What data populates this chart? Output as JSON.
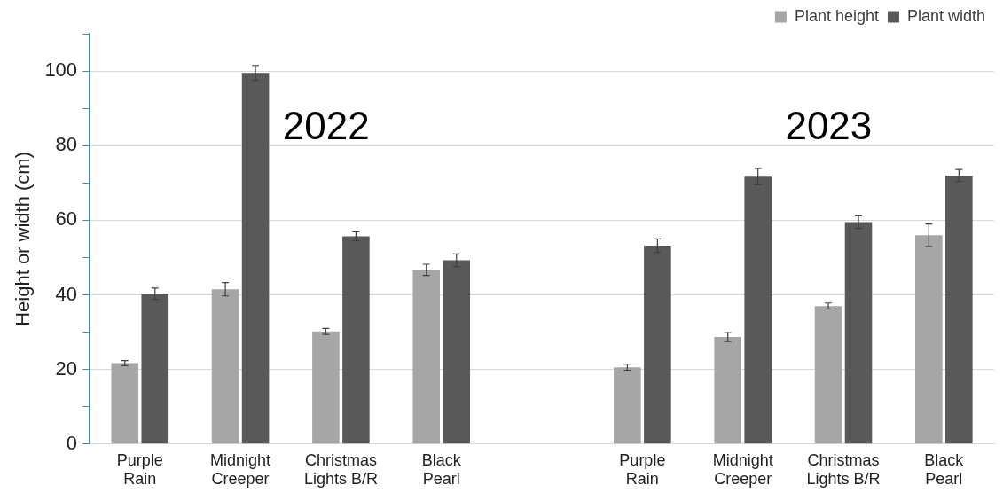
{
  "chart_data": {
    "type": "bar",
    "ylabel": "Height or width (cm)",
    "categories": [
      "Purple Rain",
      "Midnight Creeper",
      "Christmas Lights B/R",
      "Black Pearl",
      null,
      "Purple Rain",
      "Midnight Creeper",
      "Christmas Lights B/R",
      "Black Pearl"
    ],
    "series": [
      {
        "name": "Plant height",
        "color": "#a6a6a6",
        "values": [
          21.7,
          41.5,
          30.2,
          46.7,
          null,
          20.6,
          28.7,
          37,
          56
        ],
        "errors": [
          0.7,
          1.8,
          0.8,
          1.5,
          null,
          0.8,
          1.2,
          0.8,
          3
        ]
      },
      {
        "name": "Plant width",
        "color": "#595959",
        "values": [
          40.3,
          99.5,
          55.7,
          49.3,
          null,
          53.2,
          71.7,
          59.5,
          72
        ],
        "errors": [
          1.5,
          2,
          1.2,
          1.7,
          null,
          1.8,
          2.2,
          1.7,
          1.6
        ]
      }
    ],
    "ylim": [
      0,
      110
    ],
    "yticks": [
      0,
      {
        "value": 10,
        "label": null
      },
      20,
      {
        "value": 30,
        "label": null
      },
      40,
      {
        "value": 50,
        "label": null
      },
      60,
      {
        "value": 70,
        "label": null
      },
      80,
      {
        "value": 90,
        "label": null
      },
      100,
      {
        "value": 110,
        "label": null
      }
    ],
    "annotations": [
      "2022",
      "2023"
    ],
    "grid": "y",
    "legend": "top right"
  }
}
